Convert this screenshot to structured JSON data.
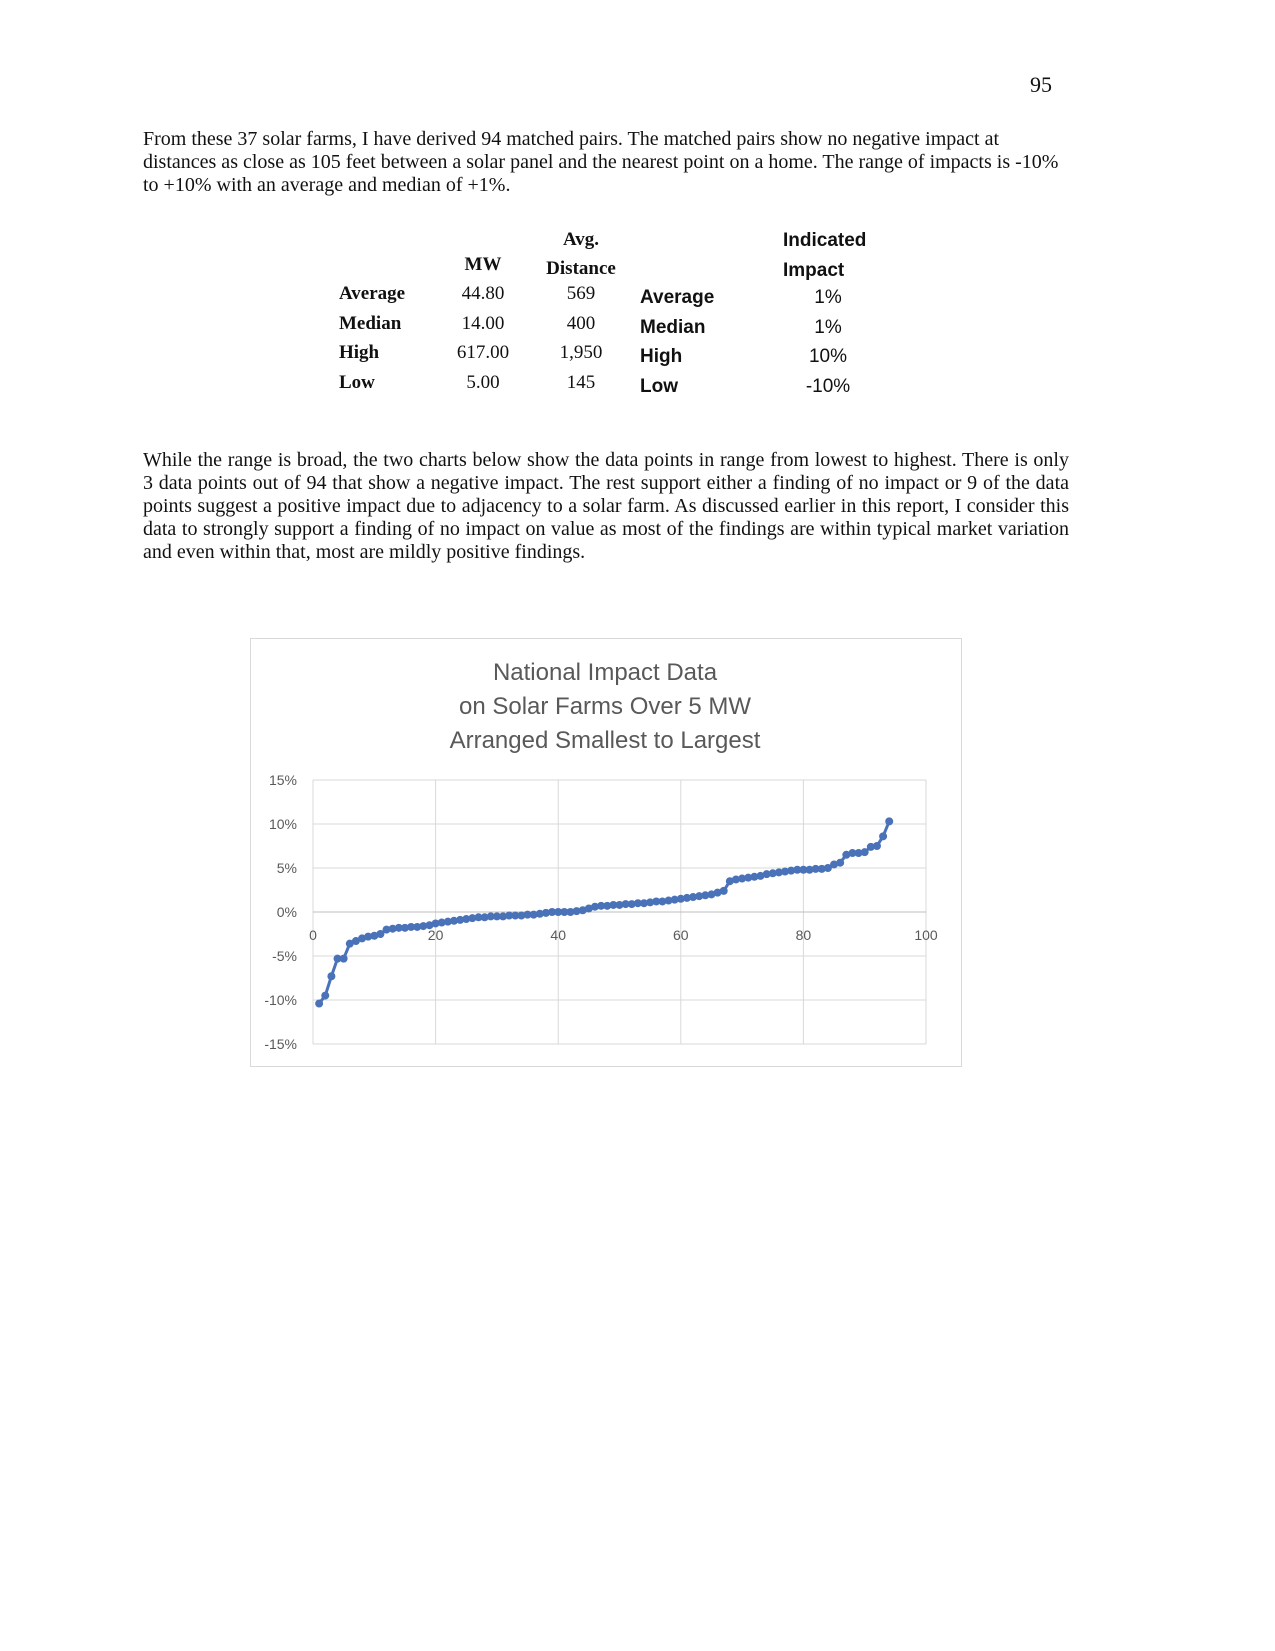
{
  "page_number": "95",
  "paragraphs": [
    "From these 37 solar farms, I have derived 94 matched pairs.  The matched pairs show no negative impact at distances as close as 105 feet between a solar panel and the nearest point on a home.  The range of impacts is -10% to +10% with an average and median of +1%.",
    "While the range is broad, the two charts below show the data points in range from lowest to highest.  There is only 3 data points out of 94 that show a negative impact.  The rest support either a finding of no impact or 9 of the data points suggest a positive impact due to adjacency to a solar farm.  As discussed earlier in this report, I consider this data to strongly support a finding of no impact on value as most of the findings are within typical market variation and even within that, most are mildly positive findings."
  ],
  "table_left": {
    "header": [
      "MW",
      "Avg. Distance"
    ],
    "rows": [
      [
        "Average",
        "44.80",
        "569"
      ],
      [
        "Median",
        "14.00",
        "400"
      ],
      [
        "High",
        "617.00",
        "1,950"
      ],
      [
        "Low",
        "5.00",
        "145"
      ]
    ]
  },
  "table_right": {
    "header": "Indicated Impact",
    "rows": [
      [
        "Average",
        "1%"
      ],
      [
        "Median",
        "1%"
      ],
      [
        "High",
        "10%"
      ],
      [
        "Low",
        "-10%"
      ]
    ]
  },
  "chart_data": {
    "type": "line",
    "title": [
      "National Impact Data",
      "on Solar Farms Over 5 MW",
      "Arranged Smallest to Largest"
    ],
    "x": [
      1,
      2,
      3,
      4,
      5,
      6,
      7,
      8,
      9,
      10,
      11,
      12,
      13,
      14,
      15,
      16,
      17,
      18,
      19,
      20,
      21,
      22,
      23,
      24,
      25,
      26,
      27,
      28,
      29,
      30,
      31,
      32,
      33,
      34,
      35,
      36,
      37,
      38,
      39,
      40,
      41,
      42,
      43,
      44,
      45,
      46,
      47,
      48,
      49,
      50,
      51,
      52,
      53,
      54,
      55,
      56,
      57,
      58,
      59,
      60,
      61,
      62,
      63,
      64,
      65,
      66,
      67,
      68,
      69,
      70,
      71,
      72,
      73,
      74,
      75,
      76,
      77,
      78,
      79,
      80,
      81,
      82,
      83,
      84,
      85,
      86,
      87,
      88,
      89,
      90,
      91,
      92,
      93,
      94
    ],
    "series": [
      {
        "color": "#4a72b8",
        "values": [
          -10.4,
          -9.5,
          -7.3,
          -5.3,
          -5.3,
          -3.6,
          -3.3,
          -3.0,
          -2.8,
          -2.7,
          -2.5,
          -2.0,
          -1.9,
          -1.8,
          -1.8,
          -1.7,
          -1.7,
          -1.6,
          -1.5,
          -1.3,
          -1.2,
          -1.1,
          -1.0,
          -0.9,
          -0.8,
          -0.7,
          -0.6,
          -0.6,
          -0.5,
          -0.5,
          -0.5,
          -0.4,
          -0.4,
          -0.4,
          -0.3,
          -0.3,
          -0.2,
          -0.1,
          0.0,
          0.0,
          0.0,
          0.0,
          0.1,
          0.2,
          0.4,
          0.6,
          0.7,
          0.7,
          0.8,
          0.8,
          0.9,
          0.9,
          1.0,
          1.0,
          1.1,
          1.2,
          1.2,
          1.3,
          1.4,
          1.5,
          1.6,
          1.7,
          1.8,
          1.9,
          2.0,
          2.2,
          2.4,
          3.5,
          3.7,
          3.8,
          3.9,
          4.0,
          4.1,
          4.3,
          4.4,
          4.5,
          4.6,
          4.7,
          4.8,
          4.8,
          4.8,
          4.9,
          4.9,
          5.0,
          5.4,
          5.6,
          6.5,
          6.7,
          6.7,
          6.8,
          7.4,
          7.5,
          8.6,
          10.3
        ]
      }
    ],
    "xlim": [
      0,
      100
    ],
    "xticks": [
      0,
      20,
      40,
      60,
      80,
      100
    ],
    "ylim": [
      -15,
      15
    ],
    "yticks": [
      {
        "value": -15,
        "label": "-15%"
      },
      {
        "value": -10,
        "label": "-10%"
      },
      {
        "value": -5,
        "label": "-5%"
      },
      {
        "value": 0,
        "label": "0%"
      },
      {
        "value": 5,
        "label": "5%"
      },
      {
        "value": 10,
        "label": "10%"
      },
      {
        "value": 15,
        "label": "15%"
      }
    ],
    "grid": true
  }
}
